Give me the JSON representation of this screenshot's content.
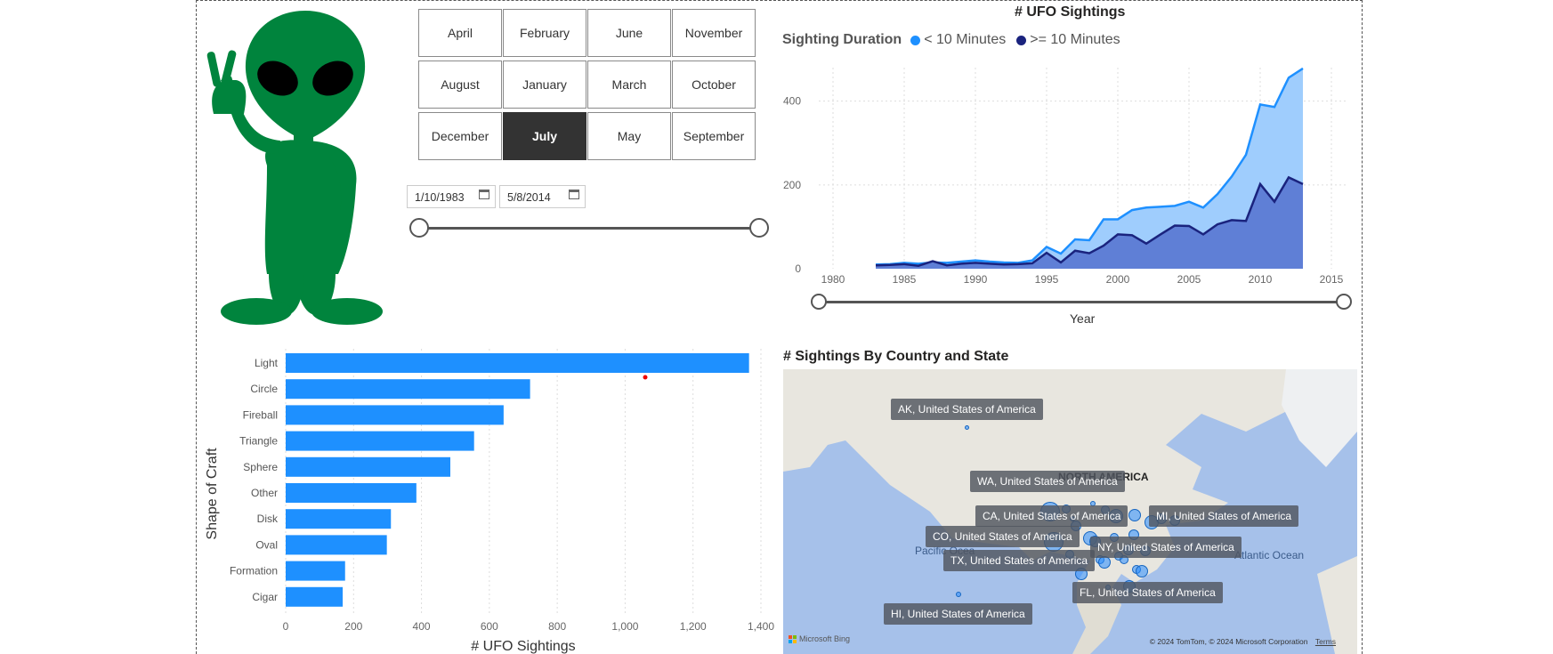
{
  "months": [
    "April",
    "February",
    "June",
    "November",
    "August",
    "January",
    "March",
    "October",
    "December",
    "July",
    "May",
    "September"
  ],
  "selected_month": "July",
  "date_range": {
    "start": "1/10/1983",
    "end": "5/8/2014"
  },
  "area_chart_title": "# UFO Sightings",
  "legend": {
    "title": "Sighting Duration",
    "items": [
      {
        "label": "< 10 Minutes",
        "color": "#1e90ff"
      },
      {
        "label": ">= 10 Minutes",
        "color": "#1a237e"
      }
    ]
  },
  "year_axis_label": "Year",
  "bar_chart": {
    "ylabel": "Shape of Craft",
    "xlabel": "# UFO Sightings"
  },
  "map": {
    "title": "# Sightings By Country and State",
    "continent_label": "NORTH AMERICA",
    "ocean_labels": [
      "Pacific Ocea",
      "Atlantic Ocean"
    ],
    "labels": [
      "AK, United States of America",
      "WA, United States of America",
      "CA, United States of America",
      "MI, United States of America",
      "CO, United States of America",
      "NY, United States of America",
      "TX, United States of America",
      "FL, United States of America",
      "HI, United States of America"
    ],
    "brand": "Microsoft Bing",
    "copyright": "© 2024 TomTom, © 2024 Microsoft Corporation",
    "terms": "Terms"
  },
  "chart_data": [
    {
      "type": "area",
      "title": "# UFO Sightings",
      "xlabel": "Year",
      "xlim": [
        1979,
        2016
      ],
      "ylim": [
        0,
        480
      ],
      "x_ticks": [
        1980,
        1985,
        1990,
        1995,
        2000,
        2005,
        2010,
        2015
      ],
      "y_ticks": [
        0,
        200,
        400
      ],
      "x": [
        1983,
        1984,
        1985,
        1986,
        1987,
        1988,
        1989,
        1990,
        1991,
        1992,
        1993,
        1994,
        1995,
        1996,
        1997,
        1998,
        1999,
        2000,
        2001,
        2002,
        2003,
        2004,
        2005,
        2006,
        2007,
        2008,
        2009,
        2010,
        2011,
        2012,
        2013
      ],
      "series": [
        {
          "name": "< 10 Minutes",
          "values": [
            10,
            11,
            14,
            12,
            15,
            14,
            17,
            20,
            17,
            15,
            14,
            20,
            52,
            36,
            70,
            68,
            118,
            118,
            140,
            146,
            148,
            150,
            160,
            146,
            178,
            220,
            272,
            392,
            386,
            456,
            478
          ]
        },
        {
          "name": ">= 10 Minutes",
          "values": [
            8,
            9,
            11,
            7,
            18,
            8,
            12,
            14,
            12,
            10,
            11,
            13,
            38,
            15,
            43,
            37,
            55,
            82,
            80,
            60,
            82,
            103,
            102,
            82,
            106,
            116,
            114,
            202,
            160,
            218,
            202
          ]
        }
      ]
    },
    {
      "type": "bar",
      "categories": [
        "Light",
        "Circle",
        "Fireball",
        "Triangle",
        "Sphere",
        "Other",
        "Disk",
        "Oval",
        "Formation",
        "Cigar"
      ],
      "values": [
        1365,
        720,
        642,
        555,
        485,
        385,
        310,
        298,
        175,
        168
      ],
      "xlabel": "# UFO Sightings",
      "ylabel": "Shape of Craft",
      "xlim": [
        0,
        1400
      ],
      "x_ticks": [
        "0",
        "200",
        "400",
        "600",
        "800",
        "1,000",
        "1,200",
        "1,400"
      ],
      "color": "#1e90ff"
    }
  ]
}
